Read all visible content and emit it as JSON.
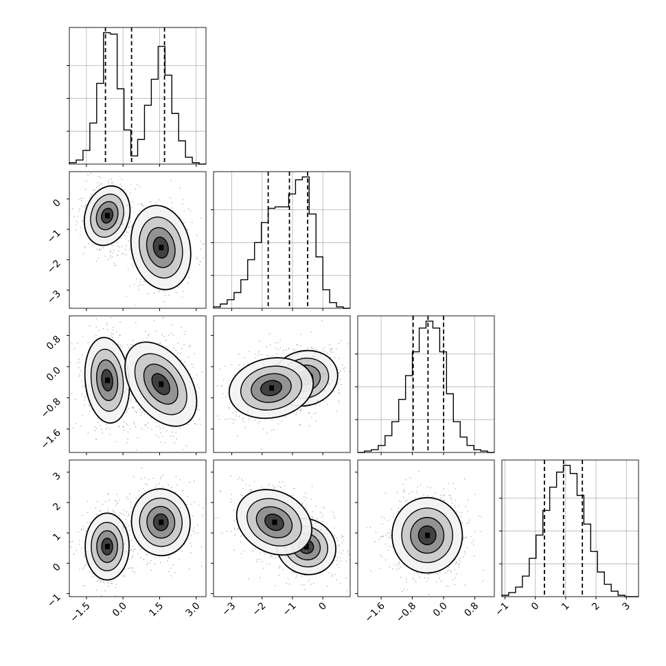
{
  "chart_data": {
    "type": "corner",
    "grid": true,
    "xlabel": "",
    "ylabel": "",
    "variables": [
      {
        "range": [
          -2.2,
          3.4
        ],
        "ticks": [
          -1.5,
          0.0,
          1.5,
          3.0
        ],
        "tick_labels": [
          "−1.5",
          "0.0",
          "1.5",
          "3.0"
        ],
        "quantiles": [
          -0.72,
          0.35,
          1.7
        ],
        "histogram": {
          "edges": [
            -2.2,
            -1.92,
            -1.64,
            -1.36,
            -1.08,
            -0.8,
            -0.52,
            -0.24,
            0.04,
            0.32,
            0.6,
            0.88,
            1.16,
            1.44,
            1.72,
            2.0,
            2.28,
            2.56,
            2.84,
            3.12,
            3.4
          ],
          "counts": [
            0.01,
            0.03,
            0.1,
            0.3,
            0.59,
            0.96,
            0.95,
            0.55,
            0.25,
            0.06,
            0.18,
            0.43,
            0.62,
            0.86,
            0.65,
            0.37,
            0.17,
            0.05,
            0.01,
            0.0
          ]
        }
      },
      {
        "range": [
          -3.6,
          0.9
        ],
        "ticks": [
          -3,
          -2,
          -1,
          0
        ],
        "tick_labels": [
          "−3",
          "−2",
          "−1",
          "0"
        ],
        "quantiles": [
          -1.8,
          -1.1,
          -0.5
        ],
        "histogram": {
          "edges": [
            -3.6,
            -3.375,
            -3.15,
            -2.925,
            -2.7,
            -2.475,
            -2.25,
            -2.025,
            -1.8,
            -1.575,
            -1.35,
            -1.125,
            -0.9,
            -0.675,
            -0.45,
            -0.225,
            0.0,
            0.225,
            0.45,
            0.675,
            0.9
          ],
          "counts": [
            0.01,
            0.03,
            0.06,
            0.11,
            0.2,
            0.34,
            0.46,
            0.6,
            0.7,
            0.71,
            0.71,
            0.8,
            0.9,
            0.92,
            0.66,
            0.36,
            0.13,
            0.04,
            0.01,
            0.0
          ]
        }
      },
      {
        "range": [
          -2.2,
          1.3
        ],
        "ticks": [
          -1.6,
          -0.8,
          0.0,
          0.8
        ],
        "tick_labels": [
          "−1.6",
          "−0.8",
          "0.0",
          "0.8"
        ],
        "quantiles": [
          -0.78,
          -0.4,
          0.0
        ],
        "histogram": {
          "edges": [
            -2.2,
            -2.025,
            -1.85,
            -1.675,
            -1.5,
            -1.325,
            -1.15,
            -0.975,
            -0.8,
            -0.625,
            -0.45,
            -0.275,
            -0.1,
            0.075,
            0.25,
            0.425,
            0.6,
            0.775,
            0.95,
            1.125,
            1.3
          ],
          "counts": [
            0.0,
            0.01,
            0.02,
            0.05,
            0.12,
            0.22,
            0.38,
            0.55,
            0.72,
            0.89,
            0.94,
            0.89,
            0.72,
            0.42,
            0.22,
            0.11,
            0.05,
            0.02,
            0.01,
            0.0
          ]
        }
      },
      {
        "range": [
          -1.1,
          3.4
        ],
        "ticks": [
          -1,
          0,
          1,
          2,
          3
        ],
        "tick_labels": [
          "−1",
          "0",
          "1",
          "2",
          "3"
        ],
        "quantiles": [
          0.3,
          0.93,
          1.55
        ],
        "histogram": {
          "edges": [
            -1.1,
            -0.875,
            -0.65,
            -0.425,
            -0.2,
            0.025,
            0.25,
            0.475,
            0.7,
            0.925,
            1.15,
            1.375,
            1.6,
            1.825,
            2.05,
            2.275,
            2.5,
            2.725,
            2.95,
            3.175,
            3.4
          ],
          "counts": [
            0.01,
            0.03,
            0.07,
            0.15,
            0.28,
            0.45,
            0.63,
            0.8,
            0.91,
            0.96,
            0.9,
            0.74,
            0.53,
            0.33,
            0.18,
            0.09,
            0.04,
            0.01,
            0.0,
            0.0
          ]
        }
      }
    ],
    "pairs": [
      {
        "xi": 0,
        "yi": 1,
        "clusters": [
          {
            "center": [
              -0.65,
              -0.55
            ],
            "sx": 0.45,
            "sy": 0.5,
            "rot": -0.3,
            "n": 520,
            "weight": 1.0
          },
          {
            "center": [
              1.55,
              -1.6
            ],
            "sx": 0.6,
            "sy": 0.7,
            "rot": 0.2,
            "n": 520,
            "weight": 0.85
          }
        ]
      },
      {
        "xi": 0,
        "yi": 2,
        "clusters": [
          {
            "center": [
              -0.65,
              -0.35
            ],
            "sx": 0.45,
            "sy": 0.55,
            "rot": 0.1,
            "n": 520,
            "weight": 1.0
          },
          {
            "center": [
              1.55,
              -0.45
            ],
            "sx": 0.6,
            "sy": 0.6,
            "rot": 0.6,
            "n": 520,
            "weight": 0.9
          }
        ]
      },
      {
        "xi": 1,
        "yi": 2,
        "clusters": [
          {
            "center": [
              -0.6,
              -0.3
            ],
            "sx": 0.55,
            "sy": 0.35,
            "rot": 0.25,
            "n": 520,
            "weight": 1.0
          },
          {
            "center": [
              -1.7,
              -0.55
            ],
            "sx": 0.7,
            "sy": 0.38,
            "rot": 0.2,
            "n": 520,
            "weight": 0.8
          }
        ]
      },
      {
        "xi": 0,
        "yi": 3,
        "clusters": [
          {
            "center": [
              -0.65,
              0.55
            ],
            "sx": 0.45,
            "sy": 0.55,
            "rot": 0.0,
            "n": 520,
            "weight": 1.0
          },
          {
            "center": [
              1.55,
              1.35
            ],
            "sx": 0.6,
            "sy": 0.55,
            "rot": 0.1,
            "n": 520,
            "weight": 0.9
          }
        ]
      },
      {
        "xi": 1,
        "yi": 3,
        "clusters": [
          {
            "center": [
              -0.55,
              0.55
            ],
            "sx": 0.5,
            "sy": 0.45,
            "rot": -0.5,
            "n": 520,
            "weight": 1.0
          },
          {
            "center": [
              -1.6,
              1.35
            ],
            "sx": 0.65,
            "sy": 0.5,
            "rot": -0.5,
            "n": 520,
            "weight": 0.85
          }
        ]
      },
      {
        "xi": 2,
        "yi": 3,
        "clusters": [
          {
            "center": [
              -0.42,
              0.92
            ],
            "sx": 0.45,
            "sy": 0.62,
            "rot": 0.0,
            "n": 980,
            "weight": 1.0
          }
        ]
      }
    ]
  }
}
